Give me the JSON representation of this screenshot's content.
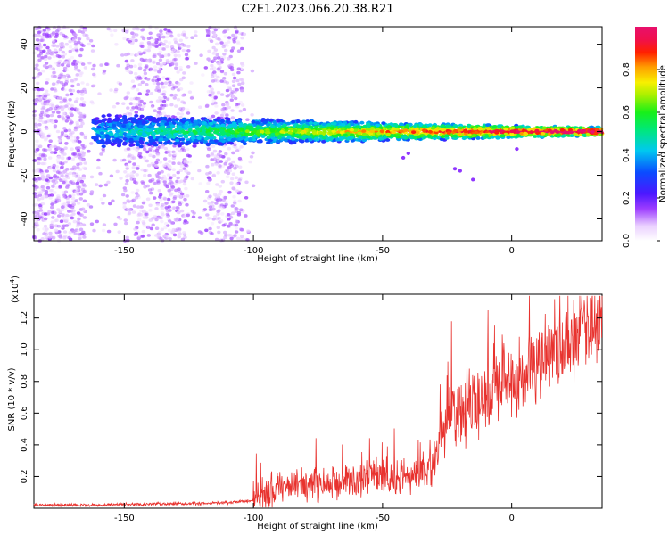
{
  "figure": {
    "title": "C2E1.2023.066.20.38.R21"
  },
  "chart_data": [
    {
      "type": "heatmap",
      "xlabel": "Height of straight line (km)",
      "ylabel": "Frequency (Hz)",
      "xlim": [
        -185,
        35
      ],
      "ylim": [
        -50,
        48
      ],
      "xticks": [
        -150,
        -100,
        -50,
        0
      ],
      "xticklabels": [
        "-150",
        "-100",
        "-50",
        "0"
      ],
      "yticks": [
        -40,
        -20,
        0,
        20,
        40
      ],
      "yticklabels": [
        "-40",
        "-20",
        "0",
        "20",
        "40"
      ],
      "grid": false,
      "colorbar": {
        "label": "Normalized spectral amplitude",
        "range": [
          0.0,
          1.0
        ],
        "ticks": [
          0.0,
          0.2,
          0.4,
          0.6,
          0.8
        ],
        "ticklabels": [
          "0.0",
          "0.2",
          "0.4",
          "0.6",
          "0.8"
        ],
        "colormap": "rainbow (white at 0, violet, blue, cyan, green, yellow, orange, red, magenta at 1)"
      },
      "features": [
        {
          "name": "broadband scatter",
          "x_range": [
            -185,
            -100
          ],
          "y_range": [
            -50,
            48
          ],
          "amplitude_range": [
            0.0,
            0.15
          ]
        },
        {
          "name": "signal band",
          "x_range": [
            -162,
            35
          ],
          "center_y": 0,
          "half_width_y": [
            8,
            2
          ],
          "amplitude_range": [
            0.15,
            1.0
          ]
        }
      ]
    },
    {
      "type": "line",
      "xlabel": "Height of straight line (km)",
      "ylabel": "SNR (10 * v/v)",
      "scale_label": "(x10",
      "scale_exponent": "4",
      "scale_suffix": ")",
      "xlim": [
        -185,
        35
      ],
      "ylim": [
        0.0,
        1.35
      ],
      "xticks": [
        -150,
        -100,
        -50,
        0
      ],
      "xticklabels": [
        "-150",
        "-100",
        "-50",
        "0"
      ],
      "yticks": [
        0.2,
        0.4,
        0.6,
        0.8,
        1.0,
        1.2
      ],
      "yticklabels": [
        "0.2",
        "0.4",
        "0.6",
        "0.8",
        "1.0",
        "1.2"
      ],
      "grid": false,
      "series": [
        {
          "color": "#e8322e",
          "x": [
            -185,
            -170,
            -160,
            -150,
            -140,
            -130,
            -120,
            -110,
            -100,
            -95,
            -90,
            -85,
            -80,
            -75,
            -70,
            -65,
            -60,
            -55,
            -50,
            -45,
            -40,
            -35,
            -30,
            -28,
            -25,
            -20,
            -15,
            -10,
            -5,
            0,
            5,
            10,
            15,
            20,
            25,
            30,
            35
          ],
          "y": [
            0.02,
            0.02,
            0.02,
            0.025,
            0.025,
            0.03,
            0.03,
            0.035,
            0.05,
            0.08,
            0.12,
            0.15,
            0.15,
            0.16,
            0.17,
            0.17,
            0.18,
            0.2,
            0.22,
            0.18,
            0.2,
            0.22,
            0.26,
            0.45,
            0.6,
            0.6,
            0.65,
            0.7,
            0.75,
            0.8,
            0.85,
            0.95,
            0.98,
            1.02,
            1.08,
            1.12,
            1.16
          ]
        }
      ]
    }
  ],
  "style": {
    "line_color": "#e8322e",
    "axis_color": "#000000"
  }
}
